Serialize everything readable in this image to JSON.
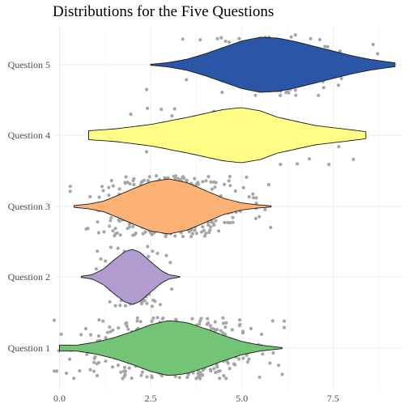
{
  "chart_data": {
    "type": "violin",
    "title": "Distributions for the Five Questions",
    "xlabel": "",
    "ylabel": "",
    "xlim": [
      -0.1,
      9.4
    ],
    "xticks": [
      "0.0",
      "2.5",
      "5.0",
      "7.5"
    ],
    "xtick_values": [
      0,
      2.5,
      5,
      7.5
    ],
    "grid": true,
    "orientation": "horizontal",
    "points": "jittered raw observations shown in gray behind each violin",
    "categories": [
      "Question 1",
      "Question 2",
      "Question 3",
      "Question 4",
      "Question 5"
    ],
    "series": [
      {
        "name": "Question 1",
        "color": "#74c476",
        "min": 0.0,
        "max": 6.1,
        "density": [
          [
            0.0,
            0.1
          ],
          [
            0.5,
            0.1
          ],
          [
            1.0,
            0.2
          ],
          [
            1.5,
            0.35
          ],
          [
            2.0,
            0.55
          ],
          [
            2.5,
            0.78
          ],
          [
            3.0,
            0.92
          ],
          [
            3.5,
            0.85
          ],
          [
            4.0,
            0.65
          ],
          [
            4.5,
            0.42
          ],
          [
            5.0,
            0.22
          ],
          [
            5.5,
            0.1
          ],
          [
            6.1,
            0.02
          ]
        ],
        "n_points": 350
      },
      {
        "name": "Question 2",
        "color": "#b19cd0",
        "min": 0.6,
        "max": 3.3,
        "density": [
          [
            0.6,
            0.02
          ],
          [
            0.9,
            0.08
          ],
          [
            1.2,
            0.28
          ],
          [
            1.5,
            0.62
          ],
          [
            1.8,
            0.92
          ],
          [
            2.0,
            1.0
          ],
          [
            2.2,
            0.9
          ],
          [
            2.5,
            0.55
          ],
          [
            2.8,
            0.22
          ],
          [
            3.0,
            0.08
          ],
          [
            3.3,
            0.01
          ]
        ],
        "n_points": 100
      },
      {
        "name": "Question 3",
        "color": "#fdb275",
        "min": 0.4,
        "max": 5.8,
        "density": [
          [
            0.4,
            0.03
          ],
          [
            0.8,
            0.08
          ],
          [
            1.2,
            0.18
          ],
          [
            1.6,
            0.38
          ],
          [
            2.0,
            0.6
          ],
          [
            2.5,
            0.85
          ],
          [
            3.0,
            0.95
          ],
          [
            3.5,
            0.82
          ],
          [
            4.0,
            0.55
          ],
          [
            4.5,
            0.28
          ],
          [
            5.0,
            0.12
          ],
          [
            5.4,
            0.06
          ],
          [
            5.8,
            0.02
          ]
        ],
        "n_points": 350
      },
      {
        "name": "Question 4",
        "color": "#ffff88",
        "min": 0.8,
        "max": 8.4,
        "density": [
          [
            0.8,
            0.1
          ],
          [
            1.5,
            0.14
          ],
          [
            2.5,
            0.24
          ],
          [
            3.5,
            0.4
          ],
          [
            4.5,
            0.58
          ],
          [
            5.0,
            0.62
          ],
          [
            5.5,
            0.55
          ],
          [
            6.0,
            0.4
          ],
          [
            7.0,
            0.22
          ],
          [
            8.0,
            0.12
          ],
          [
            8.4,
            0.08
          ]
        ],
        "n_points": 30
      },
      {
        "name": "Question 5",
        "color": "#2b56a8",
        "min": 2.5,
        "max": 9.2,
        "density": [
          [
            2.5,
            0.01
          ],
          [
            3.0,
            0.05
          ],
          [
            3.5,
            0.12
          ],
          [
            4.0,
            0.24
          ],
          [
            4.5,
            0.38
          ],
          [
            5.0,
            0.52
          ],
          [
            5.5,
            0.6
          ],
          [
            6.0,
            0.58
          ],
          [
            6.5,
            0.5
          ],
          [
            7.0,
            0.4
          ],
          [
            7.5,
            0.3
          ],
          [
            8.0,
            0.2
          ],
          [
            8.5,
            0.12
          ],
          [
            9.2,
            0.04
          ]
        ],
        "n_points": 100
      }
    ]
  }
}
